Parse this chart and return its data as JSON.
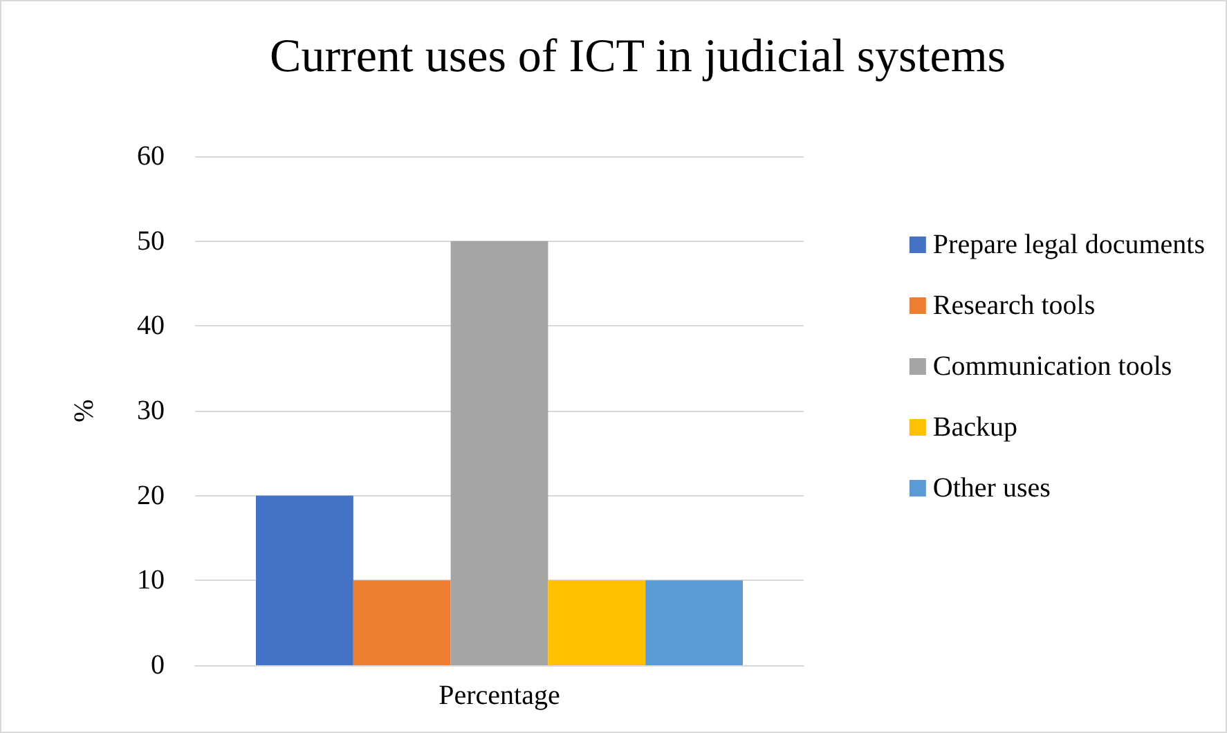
{
  "chart_data": {
    "type": "bar",
    "title": "Current uses of ICT in judicial systems",
    "ylabel": "%",
    "categories": [
      "Percentage"
    ],
    "series": [
      {
        "name": "Prepare legal documents",
        "color": "#4472c4",
        "values": [
          20
        ]
      },
      {
        "name": "Research tools",
        "color": "#ed7d31",
        "values": [
          10
        ]
      },
      {
        "name": "Communication tools",
        "color": "#a5a5a5",
        "values": [
          50
        ]
      },
      {
        "name": "Backup",
        "color": "#ffc000",
        "values": [
          10
        ]
      },
      {
        "name": "Other uses",
        "color": "#5b9bd5",
        "values": [
          10
        ]
      }
    ],
    "ylim": [
      0,
      60
    ],
    "yticks": [
      0,
      10,
      20,
      30,
      40,
      50,
      60
    ],
    "grid": "y",
    "legend": "right"
  }
}
